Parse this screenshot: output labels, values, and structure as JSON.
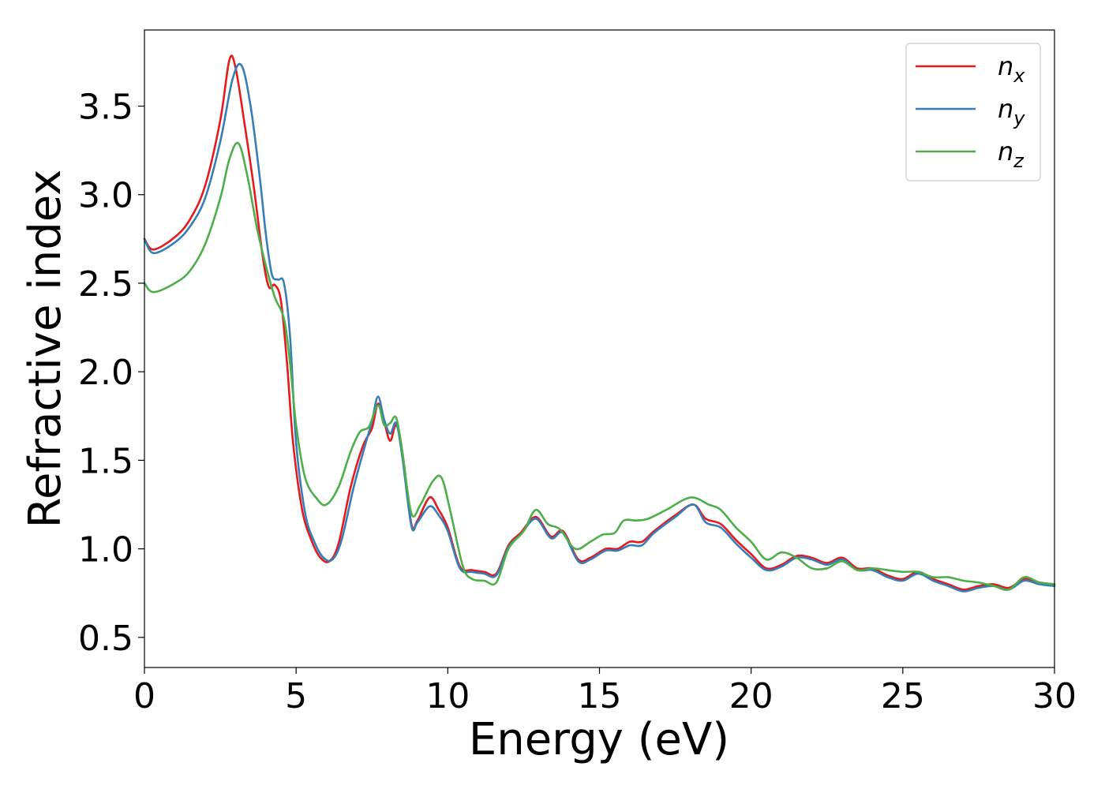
{
  "chart_data": {
    "type": "line",
    "title": "",
    "xlabel": "Energy (eV)",
    "ylabel": "Refractive index",
    "xlim": [
      0,
      30
    ],
    "ylim": [
      0.33,
      3.93
    ],
    "xticks": [
      0,
      5,
      10,
      15,
      20,
      25,
      30
    ],
    "yticks": [
      0.5,
      1.0,
      1.5,
      2.0,
      2.5,
      3.0,
      3.5
    ],
    "xtick_labels": [
      "0",
      "5",
      "10",
      "15",
      "20",
      "25",
      "30"
    ],
    "ytick_labels": [
      "0.5",
      "1.0",
      "1.5",
      "2.0",
      "2.5",
      "3.0",
      "3.5"
    ],
    "grid": false,
    "legend_position": "top-right",
    "series": [
      {
        "name": "n_x",
        "label_base": "n",
        "label_sub": "x",
        "color": "#e41a1c",
        "x": [
          0,
          0.3,
          1,
          1.5,
          2,
          2.5,
          2.8,
          3.0,
          3.3,
          3.6,
          3.9,
          4.1,
          4.3,
          4.5,
          4.7,
          4.9,
          5.2,
          5.5,
          5.8,
          6.1,
          6.4,
          6.8,
          7.2,
          7.5,
          7.7,
          7.9,
          8.1,
          8.3,
          8.5,
          8.8,
          9.0,
          9.4,
          9.7,
          10.0,
          10.4,
          10.8,
          11.2,
          11.6,
          12.0,
          12.4,
          12.9,
          13.4,
          13.8,
          14.3,
          14.7,
          15.2,
          15.6,
          16.0,
          16.4,
          16.8,
          17.5,
          18.1,
          18.5,
          19.0,
          19.5,
          20.0,
          20.5,
          21.0,
          21.5,
          22.0,
          22.5,
          23.0,
          23.5,
          24.0,
          24.5,
          25.0,
          25.5,
          26.0,
          26.5,
          27.0,
          27.5,
          28.0,
          28.5,
          29.0,
          29.5,
          30.0
        ],
        "values": [
          2.75,
          2.69,
          2.76,
          2.86,
          3.05,
          3.42,
          3.76,
          3.72,
          3.4,
          3.05,
          2.65,
          2.48,
          2.49,
          2.4,
          2.05,
          1.6,
          1.22,
          1.05,
          0.95,
          0.93,
          1.03,
          1.35,
          1.58,
          1.68,
          1.82,
          1.72,
          1.61,
          1.7,
          1.55,
          1.14,
          1.16,
          1.29,
          1.22,
          1.12,
          0.9,
          0.88,
          0.87,
          0.86,
          1.02,
          1.09,
          1.18,
          1.07,
          1.1,
          0.94,
          0.95,
          1.0,
          1.0,
          1.04,
          1.04,
          1.1,
          1.19,
          1.25,
          1.17,
          1.14,
          1.05,
          0.97,
          0.89,
          0.91,
          0.96,
          0.95,
          0.92,
          0.95,
          0.89,
          0.89,
          0.85,
          0.83,
          0.87,
          0.83,
          0.8,
          0.77,
          0.79,
          0.8,
          0.78,
          0.83,
          0.81,
          0.8
        ]
      },
      {
        "name": "n_y",
        "label_base": "n",
        "label_sub": "y",
        "color": "#377eb8",
        "x": [
          0,
          0.3,
          1,
          1.5,
          2,
          2.5,
          2.9,
          3.2,
          3.5,
          3.8,
          4.0,
          4.2,
          4.4,
          4.6,
          4.8,
          5.0,
          5.3,
          5.6,
          5.9,
          6.2,
          6.5,
          6.9,
          7.3,
          7.5,
          7.7,
          7.9,
          8.1,
          8.3,
          8.5,
          8.8,
          9.0,
          9.4,
          9.7,
          10.0,
          10.4,
          10.8,
          11.2,
          11.6,
          12.0,
          12.4,
          12.9,
          13.4,
          13.8,
          14.3,
          14.7,
          15.2,
          15.6,
          16.0,
          16.4,
          16.8,
          17.5,
          18.1,
          18.5,
          19.0,
          19.5,
          20.0,
          20.5,
          21.0,
          21.5,
          22.0,
          22.5,
          23.0,
          23.5,
          24.0,
          24.5,
          25.0,
          25.5,
          26.0,
          26.5,
          27.0,
          27.5,
          28.0,
          28.5,
          29.0,
          29.5,
          30.0
        ],
        "values": [
          2.75,
          2.67,
          2.73,
          2.82,
          2.98,
          3.3,
          3.65,
          3.73,
          3.5,
          3.1,
          2.78,
          2.55,
          2.52,
          2.5,
          2.2,
          1.6,
          1.2,
          1.04,
          0.95,
          0.94,
          1.05,
          1.35,
          1.6,
          1.72,
          1.86,
          1.73,
          1.65,
          1.71,
          1.52,
          1.13,
          1.15,
          1.24,
          1.19,
          1.1,
          0.89,
          0.87,
          0.86,
          0.85,
          1.01,
          1.08,
          1.17,
          1.06,
          1.09,
          0.93,
          0.94,
          0.99,
          0.99,
          1.02,
          1.02,
          1.09,
          1.18,
          1.25,
          1.15,
          1.12,
          1.03,
          0.95,
          0.88,
          0.9,
          0.95,
          0.94,
          0.91,
          0.94,
          0.88,
          0.88,
          0.84,
          0.82,
          0.86,
          0.82,
          0.79,
          0.76,
          0.78,
          0.79,
          0.77,
          0.82,
          0.8,
          0.79
        ]
      },
      {
        "name": "n_z",
        "label_base": "n",
        "label_sub": "z",
        "color": "#4daf4a",
        "x": [
          0,
          0.3,
          1,
          1.5,
          2,
          2.5,
          2.8,
          3.1,
          3.4,
          3.7,
          4.0,
          4.3,
          4.6,
          4.8,
          5.0,
          5.3,
          5.7,
          6.0,
          6.4,
          6.8,
          7.1,
          7.4,
          7.7,
          7.9,
          8.1,
          8.3,
          8.5,
          8.8,
          9.1,
          9.5,
          9.8,
          10.1,
          10.5,
          10.8,
          11.2,
          11.6,
          12.0,
          12.5,
          12.9,
          13.3,
          13.7,
          14.2,
          14.7,
          15.1,
          15.5,
          15.8,
          16.2,
          16.6,
          17.2,
          18.0,
          18.6,
          19.0,
          19.5,
          20.0,
          20.5,
          21.0,
          21.5,
          22.0,
          22.5,
          23.0,
          23.5,
          24.0,
          24.5,
          25.0,
          25.5,
          26.0,
          26.5,
          27.0,
          27.5,
          28.0,
          28.5,
          29.0,
          29.5,
          30.0
        ],
        "values": [
          2.5,
          2.45,
          2.5,
          2.57,
          2.72,
          2.98,
          3.2,
          3.29,
          3.1,
          2.82,
          2.6,
          2.42,
          2.3,
          2.05,
          1.7,
          1.4,
          1.28,
          1.25,
          1.35,
          1.55,
          1.66,
          1.69,
          1.81,
          1.7,
          1.71,
          1.74,
          1.55,
          1.2,
          1.25,
          1.38,
          1.4,
          1.2,
          0.9,
          0.83,
          0.82,
          0.81,
          1.0,
          1.1,
          1.22,
          1.14,
          1.11,
          1.0,
          1.04,
          1.08,
          1.09,
          1.16,
          1.16,
          1.17,
          1.22,
          1.29,
          1.25,
          1.22,
          1.12,
          1.04,
          0.94,
          0.98,
          0.95,
          0.89,
          0.89,
          0.93,
          0.88,
          0.89,
          0.88,
          0.87,
          0.87,
          0.84,
          0.84,
          0.82,
          0.81,
          0.79,
          0.77,
          0.84,
          0.81,
          0.8
        ]
      }
    ]
  }
}
